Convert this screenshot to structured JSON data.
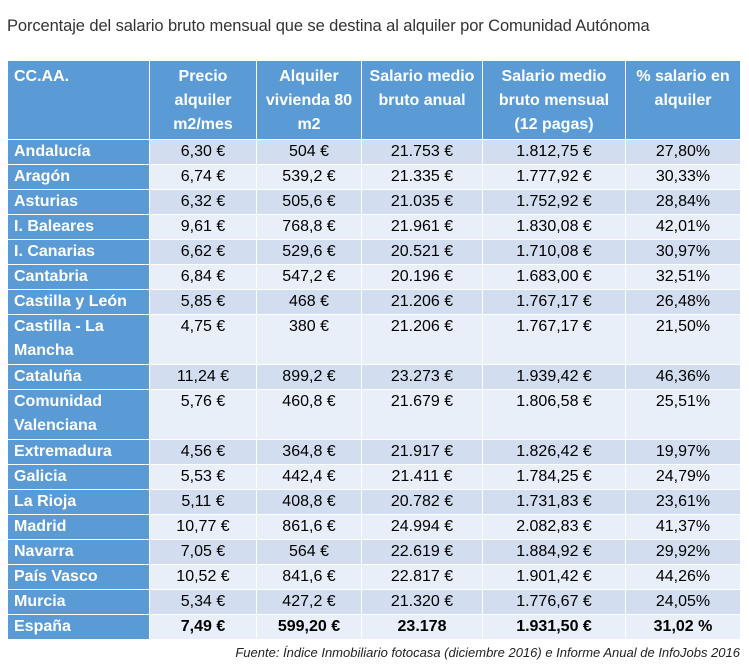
{
  "title": "Porcentaje del salario bruto mensual que se destina al alquiler por Comunidad Autónoma",
  "table": {
    "headers": [
      "CC.AA.",
      "Precio alquiler m2/mes",
      "Alquiler vivienda 80 m2",
      "Salario medio bruto anual",
      "Salario medio bruto mensual (12 pagas)",
      "% salario en alquiler"
    ],
    "rows": [
      {
        "region": "Andalucía",
        "precio": "6,30 €",
        "alquiler": "504 €",
        "anual": "21.753 €",
        "mensual": "1.812,75 €",
        "pct": "27,80%"
      },
      {
        "region": "Aragón",
        "precio": "6,74 €",
        "alquiler": "539,2 €",
        "anual": "21.335 €",
        "mensual": "1.777,92 €",
        "pct": "30,33%"
      },
      {
        "region": "Asturias",
        "precio": "6,32 €",
        "alquiler": "505,6 €",
        "anual": "21.035 €",
        "mensual": "1.752,92 €",
        "pct": "28,84%"
      },
      {
        "region": "I. Baleares",
        "precio": "9,61 €",
        "alquiler": "768,8 €",
        "anual": "21.961 €",
        "mensual": "1.830,08 €",
        "pct": "42,01%"
      },
      {
        "region": "I. Canarias",
        "precio": "6,62 €",
        "alquiler": "529,6 €",
        "anual": "20.521 €",
        "mensual": "1.710,08 €",
        "pct": "30,97%"
      },
      {
        "region": "Cantabria",
        "precio": "6,84 €",
        "alquiler": "547,2 €",
        "anual": "20.196 €",
        "mensual": "1.683,00 €",
        "pct": "32,51%"
      },
      {
        "region": "Castilla y León",
        "precio": "5,85 €",
        "alquiler": "468 €",
        "anual": "21.206 €",
        "mensual": "1.767,17 €",
        "pct": "26,48%"
      },
      {
        "region": "Castilla - La Mancha",
        "precio": "4,75 €",
        "alquiler": "380 €",
        "anual": "21.206 €",
        "mensual": "1.767,17 €",
        "pct": "21,50%"
      },
      {
        "region": "Cataluña",
        "precio": "11,24 €",
        "alquiler": "899,2 €",
        "anual": "23.273 €",
        "mensual": "1.939,42 €",
        "pct": "46,36%"
      },
      {
        "region": "Comunidad Valenciana",
        "precio": "5,76 €",
        "alquiler": "460,8 €",
        "anual": "21.679 €",
        "mensual": "1.806,58 €",
        "pct": "25,51%"
      },
      {
        "region": "Extremadura",
        "precio": "4,56 €",
        "alquiler": "364,8 €",
        "anual": "21.917 €",
        "mensual": "1.826,42 €",
        "pct": "19,97%"
      },
      {
        "region": "Galicia",
        "precio": "5,53 €",
        "alquiler": "442,4 €",
        "anual": "21.411 €",
        "mensual": "1.784,25 €",
        "pct": "24,79%"
      },
      {
        "region": "La Rioja",
        "precio": "5,11 €",
        "alquiler": "408,8 €",
        "anual": "20.782 €",
        "mensual": "1.731,83 €",
        "pct": "23,61%"
      },
      {
        "region": "Madrid",
        "precio": "10,77 €",
        "alquiler": "861,6 €",
        "anual": "24.994 €",
        "mensual": "2.082,83 €",
        "pct": "41,37%"
      },
      {
        "region": "Navarra",
        "precio": "7,05 €",
        "alquiler": "564 €",
        "anual": "22.619 €",
        "mensual": "1.884,92 €",
        "pct": "29,92%"
      },
      {
        "region": "País Vasco",
        "precio": "10,52 €",
        "alquiler": "841,6 €",
        "anual": "22.817 €",
        "mensual": "1.901,42 €",
        "pct": "44,26%"
      },
      {
        "region": "Murcia",
        "precio": "5,34 €",
        "alquiler": "427,2 €",
        "anual": "21.320 €",
        "mensual": "1.776,67 €",
        "pct": "24,05%"
      },
      {
        "region": "España",
        "precio": "7,49 €",
        "alquiler": "599,20 €",
        "anual": "23.178",
        "mensual": "1.931,50 €",
        "pct": "31,02 %"
      }
    ]
  },
  "source": "Fuente: Índice Inmobiliario fotocasa (diciembre 2016) e Informe Anual de InfoJobs 2016",
  "colors": {
    "header_bg": "#5b9bd5",
    "row_band_a": "#d2def0",
    "row_band_b": "#e9eff8",
    "title_text": "#333333"
  }
}
